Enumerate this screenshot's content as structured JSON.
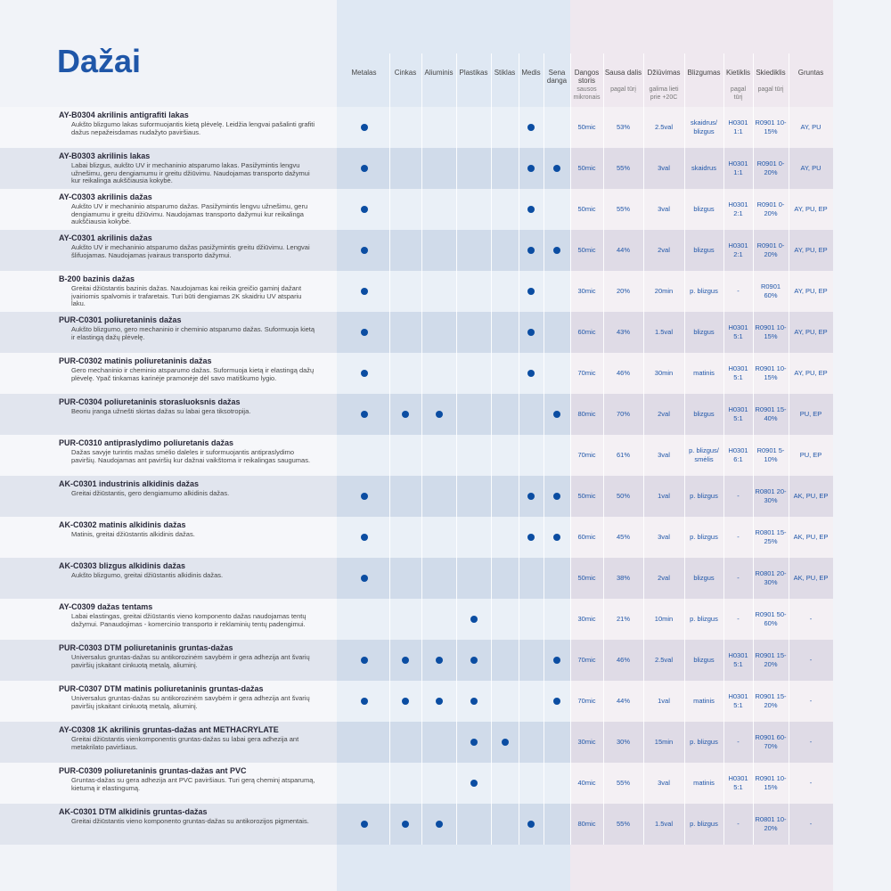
{
  "header": {
    "title": "Dažai"
  },
  "table": {
    "columns": [
      {
        "label": "Metalas"
      },
      {
        "label": "Cinkas"
      },
      {
        "label": "Aliuminis"
      },
      {
        "label": "Plastikas"
      },
      {
        "label": "Stiklas"
      },
      {
        "label": "Medis"
      },
      {
        "label": "Sena danga"
      },
      {
        "label": "Dangos storis",
        "note": "sausos mikronais"
      },
      {
        "label": "Sausa dalis",
        "note": "pagal tūrį"
      },
      {
        "label": "Džiūvimas",
        "note": "galima lieti prie +20C"
      },
      {
        "label": "Blizgumas"
      },
      {
        "label": "Kietiklis",
        "note": "pagal tūrį"
      },
      {
        "label": "Skiediklis",
        "note": "pagal tūrį"
      },
      {
        "label": "Gruntas"
      }
    ],
    "rows": [
      {
        "name": "AY-B0304 akrilinis antigrafiti lakas",
        "description": "Aukšto blizgumo lakas suformuojantis kietą plėvelę. Leidžia lengvai pašalinti grafiti dažus nepažeisdamas nudažyto paviršiaus.",
        "substrates": [
          true,
          false,
          false,
          false,
          false,
          true,
          false
        ],
        "values": [
          "50mic",
          "53%",
          "2.5val",
          "skaidrus/ blizgus",
          "H0301 1:1",
          "R0901 10-15%",
          "AY, PU"
        ]
      },
      {
        "name": "AY-B0303 akrilinis lakas",
        "description": "Labai blizgus, aukšto UV ir mechaninio atsparumo lakas. Pasižymintis lengvu užnešimu, geru dengiamumu ir greitu džiūvimu. Naudojamas transporto dažymui kur reikalinga aukščiausia kokybė.",
        "substrates": [
          true,
          false,
          false,
          false,
          false,
          true,
          true
        ],
        "values": [
          "50mic",
          "55%",
          "3val",
          "skaidrus",
          "H0301 1:1",
          "R0901 0-20%",
          "AY, PU"
        ]
      },
      {
        "name": "AY-C0303 akrilinis dažas",
        "description": "Aukšto UV ir mechaninio atsparumo dažas. Pasižymintis lengvu užnešimu, geru dengiamumu ir greitu džiūvimu. Naudojamas transporto dažymui kur reikalinga aukščiausia kokybė.",
        "substrates": [
          true,
          false,
          false,
          false,
          false,
          true,
          false
        ],
        "values": [
          "50mic",
          "55%",
          "3val",
          "blizgus",
          "H0301 2:1",
          "R0901 0-20%",
          "AY, PU, EP"
        ]
      },
      {
        "name": "AY-C0301 akrilinis dažas",
        "description": "Aukšto UV ir mechaninio atsparumo dažas pasižymintis greitu džiūvimu. Lengvai šlifuojamas. Naudojamas įvairaus transporto dažymui.",
        "substrates": [
          true,
          false,
          false,
          false,
          false,
          true,
          true
        ],
        "values": [
          "50mic",
          "44%",
          "2val",
          "blizgus",
          "H0301 2:1",
          "R0901 0-20%",
          "AY, PU, EP"
        ]
      },
      {
        "name": "B-200 bazinis dažas",
        "description": "Greitai džiūstantis bazinis dažas. Naudojamas kai reikia greičio gaminį dažant įvairiomis spalvomis ir trafaretais. Turi būti dengiamas 2K skaidriu UV atspariu laku.",
        "substrates": [
          true,
          false,
          false,
          false,
          false,
          true,
          false
        ],
        "values": [
          "30mic",
          "20%",
          "20min",
          "p. blizgus",
          "-",
          "R0901 60%",
          "AY, PU, EP"
        ]
      },
      {
        "name": "PUR-C0301 poliuretaninis dažas",
        "description": "Aukšto blizgumo, gero mechaninio ir cheminio atsparumo dažas. Suformuoja kietą ir elastingą dažų plėvelę.",
        "substrates": [
          true,
          false,
          false,
          false,
          false,
          true,
          false
        ],
        "values": [
          "60mic",
          "43%",
          "1.5val",
          "blizgus",
          "H0301 5:1",
          "R0901 10-15%",
          "AY, PU, EP"
        ]
      },
      {
        "name": "PUR-C0302 matinis poliuretaninis dažas",
        "description": "Gero mechaninio ir cheminio atsparumo dažas. Suformuoja kietą ir elastingą dažų plėvelę. Ypač tinkamas karinėje pramonėje dėl savo matiškumo lygio.",
        "substrates": [
          true,
          false,
          false,
          false,
          false,
          true,
          false
        ],
        "values": [
          "70mic",
          "46%",
          "30min",
          "matinis",
          "H0301 5:1",
          "R0901 10-15%",
          "AY, PU, EP"
        ]
      },
      {
        "name": "PUR-C0304 poliuretaninis storasluoksnis dažas",
        "description": "Beoriu įranga užnešti skirtas dažas su labai gera tiksotropija.",
        "substrates": [
          true,
          true,
          true,
          false,
          false,
          false,
          true
        ],
        "values": [
          "80mic",
          "70%",
          "2val",
          "blizgus",
          "H0301 5:1",
          "R0901 15-40%",
          "PU, EP"
        ]
      },
      {
        "name": "PUR-C0310 antipraslydimo poliuretanis dažas",
        "description": "Dažas savyje turintis mažas smėlio daleles ir suformuojantis antipraslydimo paviršių. Naudojamas ant paviršių kur dažnai vaikštoma ir reikalingas saugumas.",
        "substrates": [
          false,
          false,
          false,
          false,
          false,
          false,
          false
        ],
        "values": [
          "70mic",
          "61%",
          "3val",
          "p. blizgus/ smėlis",
          "H0301 6:1",
          "R0901 5-10%",
          "PU, EP"
        ]
      },
      {
        "name": "AK-C0301 industrinis alkidinis dažas",
        "description": "Greitai džiūstantis, gero dengiamumo alkidinis dažas.",
        "substrates": [
          true,
          false,
          false,
          false,
          false,
          true,
          true
        ],
        "values": [
          "50mic",
          "50%",
          "1val",
          "p. blizgus",
          "-",
          "R0801 20-30%",
          "AK, PU, EP"
        ]
      },
      {
        "name": "AK-C0302 matinis alkidinis dažas",
        "description": "Matinis, greitai džiūstantis alkidinis dažas.",
        "substrates": [
          true,
          false,
          false,
          false,
          false,
          true,
          true
        ],
        "values": [
          "60mic",
          "45%",
          "3val",
          "p. blizgus",
          "-",
          "R0801 15-25%",
          "AK, PU, EP"
        ]
      },
      {
        "name": "AK-C0303 blizgus alkidinis dažas",
        "description": "Aukšto blizgumo, greitai džiūstantis alkidinis dažas.",
        "substrates": [
          true,
          false,
          false,
          false,
          false,
          false,
          false
        ],
        "values": [
          "50mic",
          "38%",
          "2val",
          "blizgus",
          "-",
          "R0801 20-30%",
          "AK, PU, EP"
        ]
      },
      {
        "name": "AY-C0309 dažas tentams",
        "description": "Labai elastingas, greitai džiūstantis vieno komponento dažas naudojamas tentų dažymui. Panaudojimas - komercinio transporto ir reklaminių tentų padengimui.",
        "substrates": [
          false,
          false,
          false,
          true,
          false,
          false,
          false
        ],
        "values": [
          "30mic",
          "21%",
          "10min",
          "p. blizgus",
          "-",
          "R0901 50-60%",
          "-"
        ]
      },
      {
        "name": "PUR-C0303 DTM poliuretaninis gruntas-dažas",
        "description": "Universalus gruntas-dažas su antikorozinėm savybėm ir gera adhezija ant švarių paviršių įskaitant cinkuotą metalą, aliuminį.",
        "substrates": [
          true,
          true,
          true,
          true,
          false,
          false,
          true
        ],
        "values": [
          "70mic",
          "46%",
          "2.5val",
          "blizgus",
          "H0301 5:1",
          "R0901 15-20%",
          "-"
        ]
      },
      {
        "name": "PUR-C0307 DTM matinis poliuretaninis gruntas-dažas",
        "description": "Universalus gruntas-dažas su antikorozinėm savybėm ir gera adhezija ant švarių paviršių įskaitant cinkuotą metalą, aliuminį.",
        "substrates": [
          true,
          true,
          true,
          true,
          false,
          false,
          true
        ],
        "values": [
          "70mic",
          "44%",
          "1val",
          "matinis",
          "H0301 5:1",
          "R0901 15-20%",
          "-"
        ]
      },
      {
        "name": "AY-C0308 1K akrilinis gruntas-dažas ant METHACRYLATE",
        "description": "Greitai džiūstantis vienkomponentis gruntas-dažas su labai gera adhezija ant metakrilato paviršiaus.",
        "substrates": [
          false,
          false,
          false,
          true,
          true,
          false,
          false
        ],
        "values": [
          "30mic",
          "30%",
          "15min",
          "p. blizgus",
          "-",
          "R0901 60-70%",
          "-"
        ]
      },
      {
        "name": "PUR-C0309 poliuretaninis gruntas-dažas ant PVC",
        "description": "Gruntas-dažas su gera adhezija ant PVC paviršiaus. Turi gerą cheminį atsparumą, kietumą ir elastingumą.",
        "substrates": [
          false,
          false,
          false,
          true,
          false,
          false,
          false
        ],
        "values": [
          "40mic",
          "55%",
          "3val",
          "matinis",
          "H0301 5:1",
          "R0901 10-15%",
          "-"
        ]
      },
      {
        "name": "AK-C0301 DTM alkidinis gruntas-dažas",
        "description": "Greitai džiūstantis vieno komponento gruntas-dažas su antikorozijos pigmentais.",
        "substrates": [
          true,
          true,
          true,
          false,
          false,
          true,
          false
        ],
        "values": [
          "80mic",
          "55%",
          "1.5val",
          "p. blizgus",
          "-",
          "R0801 10-20%",
          "-"
        ]
      }
    ]
  }
}
